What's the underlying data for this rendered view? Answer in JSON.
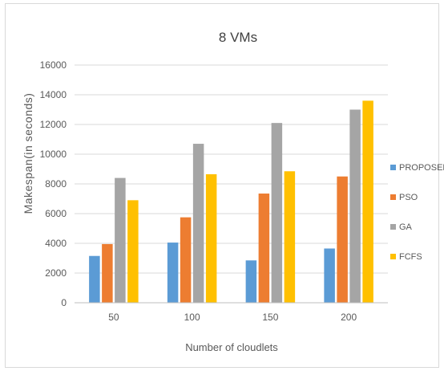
{
  "chart_data": {
    "type": "bar",
    "title": "8 VMs",
    "xlabel": "Number of cloudlets",
    "ylabel": "Makespan(in seconds)",
    "categories": [
      "50",
      "100",
      "150",
      "200"
    ],
    "series": [
      {
        "name": "PROPOSED",
        "color": "#5b9bd5",
        "values": [
          3150,
          4050,
          2850,
          3650
        ]
      },
      {
        "name": "PSO",
        "color": "#ed7d31",
        "values": [
          3950,
          5750,
          7350,
          8500
        ]
      },
      {
        "name": "GA",
        "color": "#a5a5a5",
        "values": [
          8400,
          10700,
          12100,
          13000
        ]
      },
      {
        "name": "FCFS",
        "color": "#ffc000",
        "values": [
          6900,
          8650,
          8850,
          13600
        ]
      }
    ],
    "ylim": [
      0,
      16000
    ],
    "yticks": [
      "0",
      "2000",
      "4000",
      "6000",
      "8000",
      "10000",
      "12000",
      "14000",
      "16000"
    ],
    "grid": true,
    "legend_position": "right"
  }
}
